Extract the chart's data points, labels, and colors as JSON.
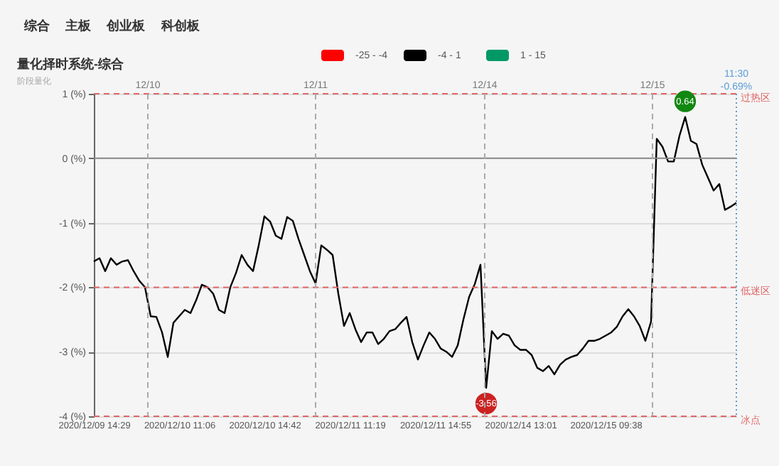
{
  "chart_data": {
    "type": "line",
    "title": "量化择时系统-综合",
    "subtitle": "阶段量化",
    "annotations": [
      "综合",
      "主板",
      "创业板",
      "科创板",
      "12/10",
      "12/11",
      "12/14",
      "12/15",
      "11:30\n-0.69%",
      {
        "text": "0.64",
        "y": 0.64
      },
      {
        "text": "-3.56",
        "y": -3.56
      }
    ],
    "categories": [
      "2020/12/09 14:29",
      null,
      null,
      null,
      null,
      null,
      null,
      null,
      null,
      null,
      null,
      null,
      null,
      null,
      null,
      "2020/12/10 11:06",
      null,
      null,
      null,
      null,
      null,
      null,
      null,
      null,
      null,
      null,
      null,
      null,
      null,
      null,
      "2020/12/10 14:42",
      null,
      null,
      null,
      null,
      null,
      null,
      null,
      null,
      null,
      null,
      null,
      null,
      null,
      null,
      "2020/12/11 11:19",
      null,
      null,
      null,
      null,
      null,
      null,
      null,
      null,
      null,
      null,
      null,
      null,
      null,
      null,
      "2020/12/11 14:55",
      null,
      null,
      null,
      null,
      null,
      null,
      null,
      null,
      null,
      null,
      null,
      null,
      null,
      null,
      "2020/12/14 13:01",
      null,
      null,
      null,
      null,
      null,
      null,
      null,
      null,
      null,
      null,
      null,
      null,
      null,
      null,
      "2020/12/15 09:38",
      null,
      null,
      null,
      null,
      null,
      null,
      null,
      null,
      null,
      null,
      null,
      null,
      null,
      null,
      null,
      null,
      null,
      null,
      null,
      null,
      null,
      null,
      null
    ],
    "series": [
      {
        "name": "-25 - -4",
        "color": "#ff0000",
        "values": [
          null,
          null,
          null,
          null,
          null,
          null,
          null,
          null,
          null,
          null,
          null,
          null,
          null,
          null,
          null,
          null,
          null,
          null,
          null,
          null,
          null,
          null,
          null,
          null,
          null,
          null,
          null,
          null,
          null,
          null,
          null,
          null,
          null,
          null,
          null,
          null,
          null,
          null,
          null,
          null,
          null,
          null,
          null,
          null,
          null,
          null,
          null,
          null,
          null,
          null,
          null,
          null,
          null,
          null,
          null,
          null,
          null,
          null,
          null,
          null,
          null,
          null,
          null,
          null,
          null,
          null,
          null,
          null,
          null,
          null,
          null,
          null,
          null,
          null,
          null,
          null,
          null,
          null,
          null,
          null,
          null,
          null,
          null,
          null,
          null,
          null,
          null,
          null,
          null,
          null,
          null,
          null,
          null,
          null,
          null,
          null,
          null,
          null,
          null,
          null,
          null,
          null,
          null,
          null,
          null,
          null,
          null,
          null,
          null,
          null,
          null,
          null,
          null,
          null
        ]
      },
      {
        "name": "-4 - 1",
        "color": "#000000",
        "values": [
          -1.6,
          -1.55,
          -1.75,
          -1.55,
          -1.65,
          -1.6,
          -1.58,
          -1.75,
          -1.9,
          -2.0,
          -2.45,
          -2.46,
          -2.7,
          -3.08,
          -2.55,
          -2.45,
          -2.35,
          -2.4,
          -2.2,
          -1.96,
          -2.0,
          -2.1,
          -2.35,
          -2.4,
          -2.0,
          -1.78,
          -1.5,
          -1.65,
          -1.75,
          -1.35,
          -0.9,
          -0.98,
          -1.2,
          -1.25,
          -0.91,
          -0.97,
          -1.25,
          -1.5,
          -1.75,
          -1.94,
          -1.35,
          -1.42,
          -1.5,
          -2.1,
          -2.6,
          -2.4,
          -2.65,
          -2.85,
          -2.7,
          -2.7,
          -2.88,
          -2.8,
          -2.68,
          -2.65,
          -2.55,
          -2.46,
          -2.85,
          -3.12,
          -2.9,
          -2.7,
          -2.8,
          -2.95,
          -3.0,
          -3.08,
          -2.9,
          -2.5,
          -2.15,
          -1.95,
          -1.65,
          -3.56,
          -2.68,
          -2.8,
          -2.72,
          -2.75,
          -2.9,
          -2.97,
          -2.97,
          -3.05,
          -3.25,
          -3.3,
          -3.22,
          -3.35,
          -3.2,
          -3.12,
          -3.08,
          -3.05,
          -2.95,
          -2.83,
          -2.83,
          -2.8,
          -2.75,
          -2.7,
          -2.61,
          -2.45,
          -2.34,
          -2.45,
          -2.6,
          -2.83,
          -2.53,
          0.3,
          0.18,
          -0.05,
          -0.05,
          0.35,
          0.64,
          0.27,
          0.22,
          -0.1,
          -0.3,
          -0.5,
          -0.4,
          -0.8,
          -0.75,
          -0.69
        ]
      },
      {
        "name": "1 - 15",
        "color": "#009966",
        "values": [
          null,
          null,
          null,
          null,
          null,
          null,
          null,
          null,
          null,
          null,
          null,
          null,
          null,
          null,
          null,
          null,
          null,
          null,
          null,
          null,
          null,
          null,
          null,
          null,
          null,
          null,
          null,
          null,
          null,
          null,
          null,
          null,
          null,
          null,
          null,
          null,
          null,
          null,
          null,
          null,
          null,
          null,
          null,
          null,
          null,
          null,
          null,
          null,
          null,
          null,
          null,
          null,
          null,
          null,
          null,
          null,
          null,
          null,
          null,
          null,
          null,
          null,
          null,
          null,
          null,
          null,
          null,
          null,
          null,
          null,
          null,
          null,
          null,
          null,
          null,
          null,
          null,
          null,
          null,
          null,
          null,
          null,
          null,
          null,
          null,
          null,
          null,
          null,
          null,
          null,
          null,
          null,
          null,
          null,
          null,
          null,
          null,
          null,
          null,
          null,
          null,
          null,
          null,
          null,
          null,
          null,
          null,
          null,
          null,
          null,
          null,
          null,
          null,
          null
        ]
      }
    ],
    "ylim": [
      -4,
      1
    ],
    "yticks": [
      {
        "value": -4,
        "label": "-4 (%)"
      },
      {
        "value": -3,
        "label": "-3 (%)"
      },
      {
        "value": -2,
        "label": "-2 (%)"
      },
      {
        "value": -1,
        "label": "-1 (%)"
      },
      {
        "value": 0,
        "label": "0 (%)"
      },
      {
        "value": 1,
        "label": "1 (%)"
      }
    ],
    "ref_lines": [
      {
        "axis": "y",
        "value": 1,
        "label": "过热区",
        "color": "#e06666",
        "line_style": "dashed"
      },
      {
        "axis": "y",
        "value": -2,
        "label": "低迷区",
        "color": "#e06666",
        "line_style": "dashed"
      },
      {
        "axis": "y",
        "value": -4,
        "label": "冰点",
        "color": "#e06666",
        "line_style": "dashed"
      },
      {
        "axis": "y",
        "value": 0,
        "color": "#888888",
        "line_style": "solid"
      }
    ],
    "grid": "y",
    "legend": "top",
    "line_style": "solid",
    "marker": "none"
  }
}
